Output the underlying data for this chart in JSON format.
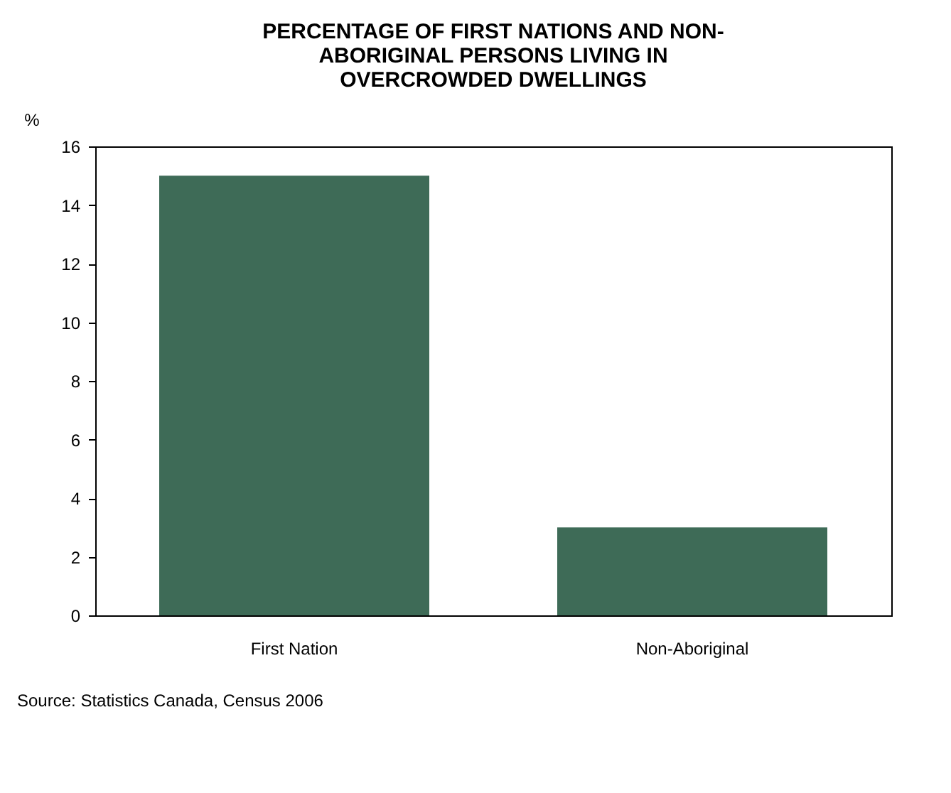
{
  "chart_data": {
    "type": "bar",
    "title": "PERCENTAGE OF FIRST NATIONS AND NON-\nABORIGINAL PERSONS LIVING IN\nOVERCROWDED DWELLINGS",
    "ylabel": "%",
    "categories": [
      "First Nation",
      "Non-Aboriginal"
    ],
    "values": [
      15,
      3
    ],
    "color": "#3e6b57",
    "ylim": [
      0,
      16
    ],
    "yticks": [
      0,
      2,
      4,
      6,
      8,
      10,
      12,
      14,
      16
    ],
    "grid": false,
    "annotations": [
      "Source: Statistics Canada, Census 2006"
    ]
  }
}
